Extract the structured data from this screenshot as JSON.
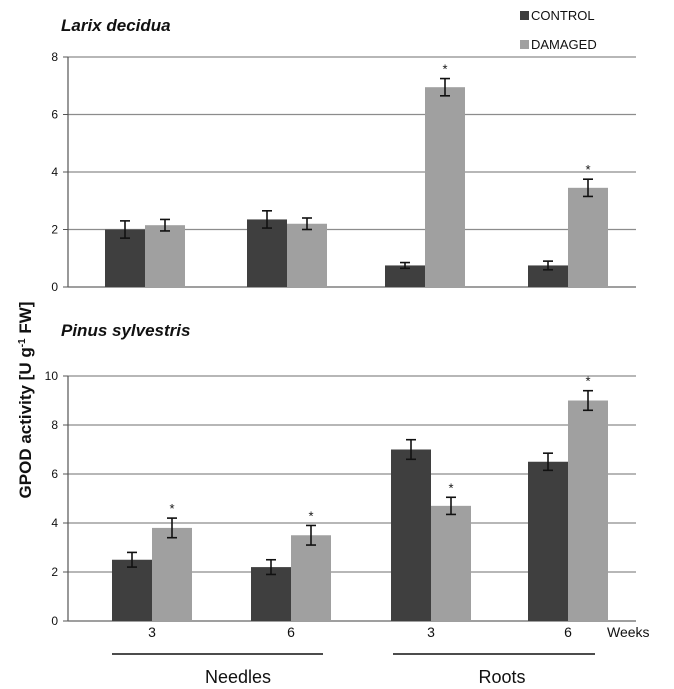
{
  "ylabel_main": "GPOD activity [U g",
  "ylabel_sup": "-1",
  "ylabel_end": " FW]",
  "legend": {
    "control_label": "CONTROL",
    "damaged_label": "DAMAGED",
    "control_color": "#3f3f3f",
    "damaged_color": "#a0a0a0"
  },
  "x_axis_unit": "Weeks",
  "group_labels": [
    "Needles",
    "Roots"
  ],
  "chart_data": [
    {
      "type": "bar",
      "title": "Larix decidua",
      "categories": [
        "3",
        "6",
        "3",
        "6"
      ],
      "ylim": [
        0,
        8
      ],
      "yticks": [
        0,
        2,
        4,
        6,
        8
      ],
      "grid": true,
      "series": [
        {
          "name": "CONTROL",
          "values": [
            2.0,
            2.35,
            0.75,
            0.75
          ],
          "errors": [
            0.3,
            0.3,
            0.1,
            0.15
          ]
        },
        {
          "name": "DAMAGED",
          "values": [
            2.15,
            2.2,
            6.95,
            3.45
          ],
          "errors": [
            0.2,
            0.2,
            0.3,
            0.3
          ]
        }
      ],
      "significant": [
        [
          false,
          false,
          false,
          false
        ],
        [
          false,
          false,
          true,
          true
        ]
      ]
    },
    {
      "type": "bar",
      "title": "Pinus sylvestris",
      "categories": [
        "3",
        "6",
        "3",
        "6"
      ],
      "ylim": [
        0,
        10
      ],
      "yticks": [
        0,
        2,
        4,
        6,
        8,
        10
      ],
      "grid": true,
      "series": [
        {
          "name": "CONTROL",
          "values": [
            2.5,
            2.2,
            7.0,
            6.5
          ],
          "errors": [
            0.3,
            0.3,
            0.4,
            0.35
          ]
        },
        {
          "name": "DAMAGED",
          "values": [
            3.8,
            3.5,
            4.7,
            9.0
          ],
          "errors": [
            0.4,
            0.4,
            0.35,
            0.4
          ]
        }
      ],
      "significant": [
        [
          false,
          false,
          false,
          false
        ],
        [
          true,
          true,
          true,
          true
        ]
      ]
    }
  ]
}
